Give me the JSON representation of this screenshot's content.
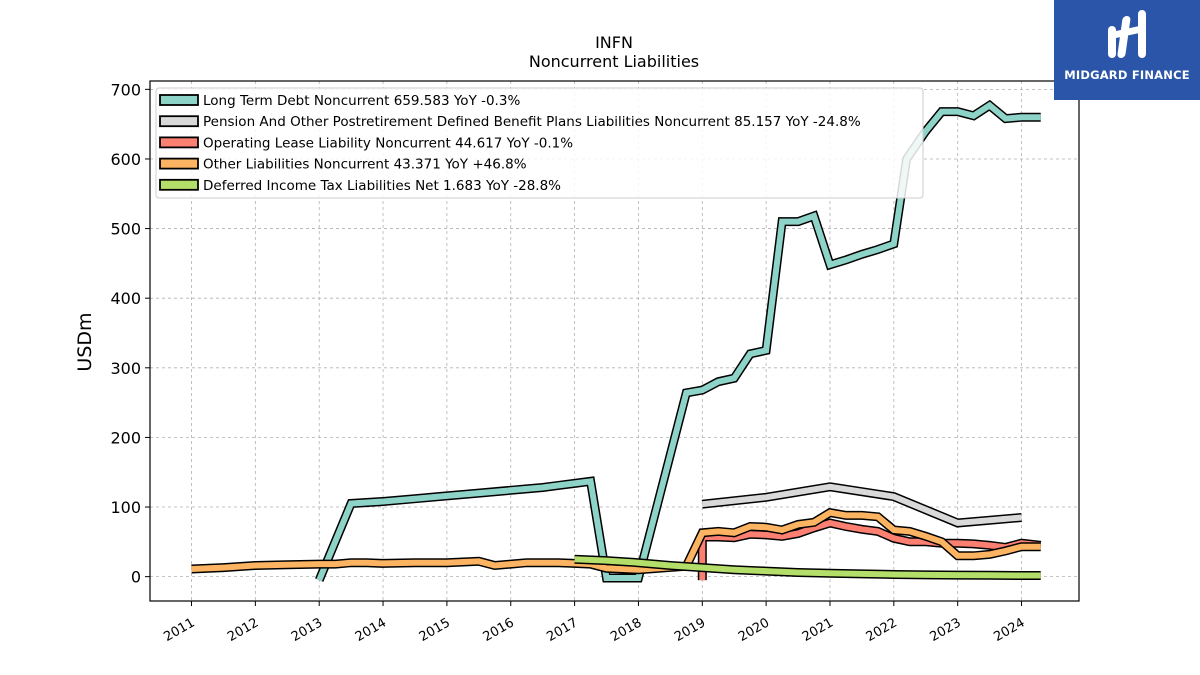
{
  "chart_data": {
    "type": "line",
    "title": "INFN",
    "subtitle": "Noncurrent  Liabilities",
    "xlabel": "",
    "ylabel": "USDm",
    "xlim": [
      2010.35,
      2024.9
    ],
    "ylim": [
      -35,
      712
    ],
    "grid": true,
    "legend_position": "top-left",
    "xticks": [
      2011,
      2012,
      2013,
      2014,
      2015,
      2016,
      2017,
      2018,
      2019,
      2020,
      2021,
      2022,
      2023,
      2024
    ],
    "xtick_labels": [
      "2011",
      "2012",
      "2013",
      "2014",
      "2015",
      "2016",
      "2017",
      "2018",
      "2019",
      "2020",
      "2021",
      "2022",
      "2023",
      "2024"
    ],
    "yticks": [
      0,
      100,
      200,
      300,
      400,
      500,
      600,
      700
    ],
    "ytick_labels": [
      "0",
      "100",
      "200",
      "300",
      "400",
      "500",
      "600",
      "700"
    ],
    "series": [
      {
        "name": "Long Term Debt Noncurrent",
        "legend": "Long Term Debt Noncurrent  659.583 YoY -0.3%",
        "color": "#8dd3c7",
        "x": [
          2013.0,
          2013.5,
          2014.0,
          2014.5,
          2015.0,
          2015.5,
          2016.0,
          2016.25,
          2016.5,
          2016.75,
          2017.0,
          2017.25,
          2017.5,
          2017.75,
          2018.0,
          2018.75,
          2019.0,
          2019.25,
          2019.5,
          2019.75,
          2020.0,
          2020.25,
          2020.5,
          2020.75,
          2021.0,
          2021.25,
          2021.5,
          2021.75,
          2022.0,
          2022.2,
          2022.5,
          2022.75,
          2023.0,
          2023.25,
          2023.5,
          2023.75,
          2024.0,
          2024.3
        ],
        "y": [
          -5,
          105,
          108,
          112,
          116,
          120,
          124,
          126,
          128,
          131,
          134,
          137,
          -2,
          -2,
          -2,
          264,
          268,
          280,
          285,
          320,
          325,
          510,
          510,
          518,
          448,
          455,
          463,
          470,
          478,
          600,
          640,
          668,
          668,
          662,
          677,
          658,
          660,
          660
        ]
      },
      {
        "name": "Pension And Other Postretirement Defined Benefit Plans Liabilities Noncurrent",
        "legend": "Pension And Other Postretirement Defined Benefit Plans Liabilities Noncurrent  85.157 YoY -24.8%",
        "color": "#d9d9d9",
        "x": [
          2019.0,
          2020.0,
          2021.0,
          2022.0,
          2023.0,
          2024.0
        ],
        "y": [
          104,
          114,
          129,
          115,
          77,
          85
        ]
      },
      {
        "name": "Operating Lease Liability Noncurrent",
        "legend": "Operating Lease Liability Noncurrent  44.617 YoY -0.1%",
        "color": "#fb8072",
        "x": [
          2019.0,
          2019.0,
          2019.25,
          2019.5,
          2019.75,
          2020.0,
          2020.25,
          2020.5,
          2020.75,
          2021.0,
          2021.25,
          2021.5,
          2021.75,
          2022.0,
          2022.25,
          2022.5,
          2022.75,
          2023.0,
          2023.25,
          2023.5,
          2023.75,
          2024.0,
          2024.3
        ],
        "y": [
          -5,
          57,
          57,
          56,
          61,
          60,
          58,
          62,
          70,
          77,
          72,
          68,
          65,
          55,
          50,
          50,
          48,
          48,
          47,
          45,
          42,
          48,
          45
        ]
      },
      {
        "name": "Other Liabilities Noncurrent",
        "legend": "Other Liabilities Noncurrent  43.371 YoY +46.8%",
        "color": "#fdb462",
        "x": [
          2011.0,
          2011.5,
          2012.0,
          2012.5,
          2013.0,
          2013.25,
          2013.5,
          2013.75,
          2014.0,
          2014.5,
          2015.0,
          2015.25,
          2015.5,
          2015.75,
          2016.0,
          2016.25,
          2016.5,
          2016.75,
          2017.0,
          2017.25,
          2017.5,
          2017.75,
          2018.0,
          2018.75,
          2019.0,
          2019.25,
          2019.5,
          2019.75,
          2020.0,
          2020.25,
          2020.5,
          2020.75,
          2021.0,
          2021.25,
          2021.5,
          2021.75,
          2022.0,
          2022.25,
          2022.5,
          2022.75,
          2023.0,
          2023.25,
          2023.5,
          2023.75,
          2024.0,
          2024.3
        ],
        "y": [
          11,
          13,
          16,
          17,
          18,
          18,
          20,
          20,
          19,
          20,
          20,
          21,
          22,
          16,
          18,
          20,
          20,
          20,
          19,
          18,
          12,
          11,
          10,
          15,
          63,
          65,
          63,
          72,
          71,
          67,
          75,
          78,
          92,
          88,
          88,
          86,
          67,
          65,
          58,
          50,
          30,
          30,
          32,
          37,
          43,
          43
        ]
      },
      {
        "name": "Deferred Income Tax Liabilities Net",
        "legend": "Deferred Income Tax Liabilities Net  1.683 YoY -28.8%",
        "color": "#b3de69",
        "x": [
          2017.0,
          2017.5,
          2018.0,
          2018.5,
          2019.0,
          2019.5,
          2020.0,
          2020.5,
          2021.0,
          2021.5,
          2022.0,
          2022.5,
          2023.0,
          2023.5,
          2024.0,
          2024.3
        ],
        "y": [
          25,
          23,
          20,
          16,
          13,
          10,
          8,
          6,
          5,
          4,
          3,
          2.5,
          2.2,
          2,
          1.7,
          1.7
        ]
      }
    ]
  },
  "logo": {
    "text": "MIDGARD FINANCE",
    "background": "#2a55a8"
  }
}
